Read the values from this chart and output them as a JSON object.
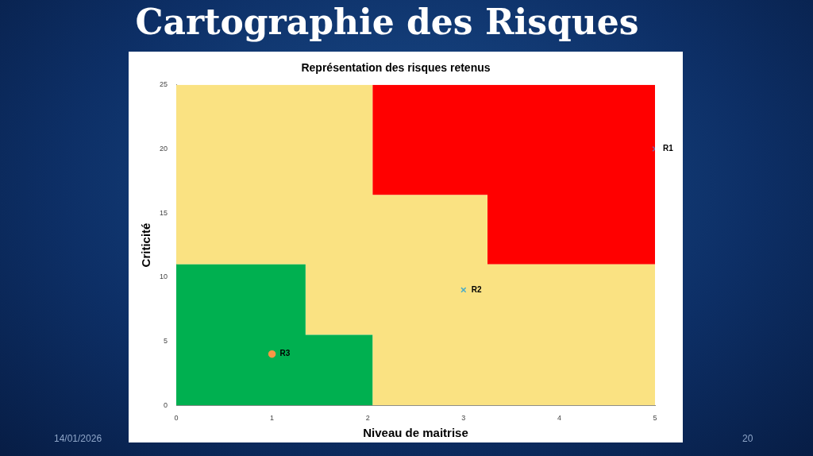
{
  "chart_data": {
    "type": "area",
    "title": "Cartographie des Risques",
    "subtitle": "Représentation des risques retenus",
    "xlabel": "Niveau de maitrise",
    "ylabel": "Criticité",
    "stacked": true,
    "series": [
      {
        "color": "#00b050",
        "x": [
          0,
          1.35,
          1.35,
          2.05,
          2.05,
          3.25,
          3.25,
          5
        ],
        "values": [
          11,
          11,
          5.5,
          5.5,
          0,
          0,
          0,
          0
        ]
      },
      {
        "color": "#fae282",
        "x": [
          0,
          1.35,
          1.35,
          2.05,
          2.05,
          3.25,
          3.25,
          5
        ],
        "values": [
          14,
          14,
          19.5,
          19.5,
          16.4,
          16.4,
          11,
          11
        ]
      },
      {
        "color": "#ff0000",
        "x": [
          0,
          1.35,
          1.35,
          2.05,
          2.05,
          3.25,
          3.25,
          5
        ],
        "values": [
          0,
          0,
          0,
          0,
          8.6,
          8.6,
          14,
          14
        ]
      },
      {
        "type": "scatter",
        "name": "R1",
        "color": "#8064a2",
        "marker": "cross",
        "x": [
          5
        ],
        "values": [
          20
        ]
      },
      {
        "type": "scatter",
        "name": "R2",
        "color": "#4bacc6",
        "marker": "cross",
        "x": [
          3
        ],
        "values": [
          9
        ]
      },
      {
        "type": "scatter",
        "name": "R3",
        "color": "#f79646",
        "marker": "circle",
        "x": [
          1
        ],
        "values": [
          4
        ]
      }
    ],
    "xlim": [
      0,
      5
    ],
    "xticks": [
      0,
      1,
      2,
      3,
      4,
      5
    ],
    "ylim": [
      0,
      25
    ],
    "yticks": [
      0,
      5,
      10,
      15,
      20,
      25
    ],
    "grid": false,
    "legend": false,
    "annotations": [
      "14/01/2026",
      "20"
    ]
  }
}
